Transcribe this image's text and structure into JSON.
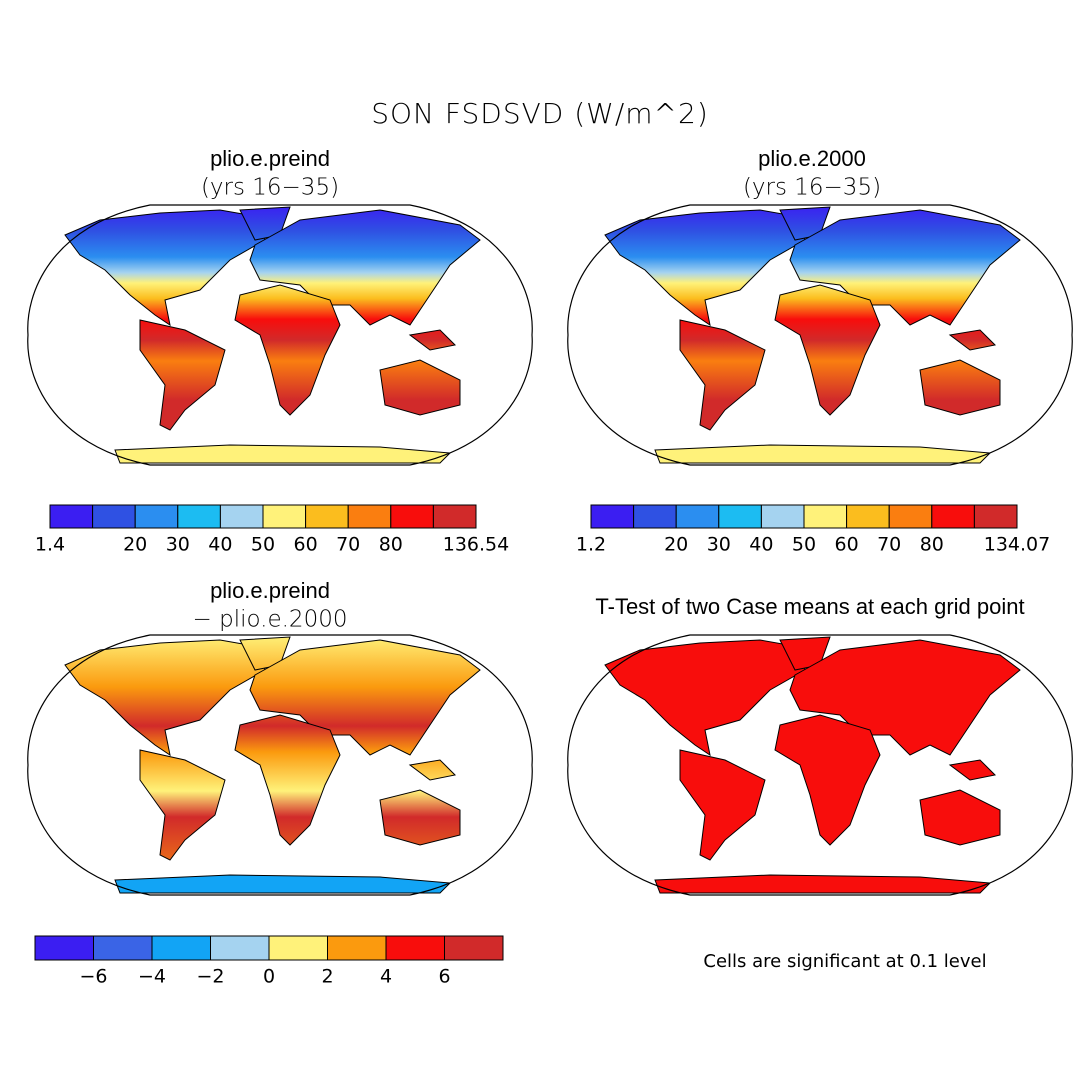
{
  "title": "SON FSDSVD (W/m^2)",
  "panels": [
    {
      "title": "plio.e.preind",
      "subtitle": "(yrs 16−35)",
      "colorbar": {
        "colors": [
          "#3b1ef2",
          "#2f51e3",
          "#2b8ef0",
          "#1cbcf2",
          "#a5d3f0",
          "#fff27a",
          "#fbbd1e",
          "#fa7e10",
          "#f80d0c",
          "#d12a2a"
        ],
        "ticks": [
          1.4,
          null,
          20,
          30,
          40,
          50,
          60,
          70,
          80,
          null,
          136.54
        ]
      }
    },
    {
      "title": "plio.e.2000",
      "subtitle": "(yrs 16−35)",
      "colorbar": {
        "colors": [
          "#3b1ef2",
          "#2f51e3",
          "#2b8ef0",
          "#1cbcf2",
          "#a5d3f0",
          "#fff27a",
          "#fbbd1e",
          "#fa7e10",
          "#f80d0c",
          "#d12a2a"
        ],
        "ticks": [
          1.2,
          null,
          20,
          30,
          40,
          50,
          60,
          70,
          80,
          null,
          134.07
        ]
      }
    },
    {
      "title": "plio.e.preind",
      "subtitle": "− plio.e.2000",
      "colorbar": {
        "colors": [
          "#3b1ef2",
          "#3a64e6",
          "#12a4f5",
          "#a5d3f0",
          "#fff27a",
          "#fb9a0e",
          "#f80d0c",
          "#d12a2a"
        ],
        "ticks": [
          null,
          {
            "value": -6,
            "label": "−6"
          },
          {
            "value": -4,
            "label": "−4"
          },
          {
            "value": -2,
            "label": "−2"
          },
          0,
          2,
          4,
          6,
          null
        ]
      }
    },
    {
      "title": "T-Test of two Case means at each grid point"
    }
  ],
  "note": "Cells are significant at 0.1 level"
}
